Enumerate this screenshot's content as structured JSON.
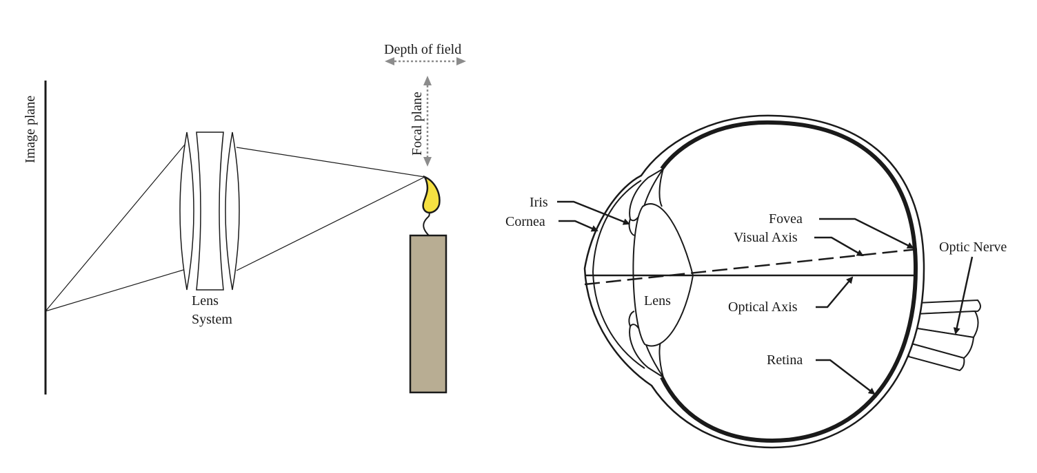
{
  "camera": {
    "image_plane_label": "Image plane",
    "lens_label_line1": "Lens",
    "lens_label_line2": "System",
    "depth_of_field_label": "Depth of field",
    "focal_plane_label": "Focal plane"
  },
  "eye": {
    "iris_label": "Iris",
    "cornea_label": "Cornea",
    "lens_label": "Lens",
    "fovea_label": "Fovea",
    "visual_axis_label": "Visual Axis",
    "optical_axis_label": "Optical Axis",
    "retina_label": "Retina",
    "optic_nerve_label": "Optic Nerve"
  },
  "colors": {
    "flame": "#f5e042",
    "candle": "#b8ad93",
    "arrow_gray": "#8c8c8c",
    "ink": "#1a1a1a"
  }
}
